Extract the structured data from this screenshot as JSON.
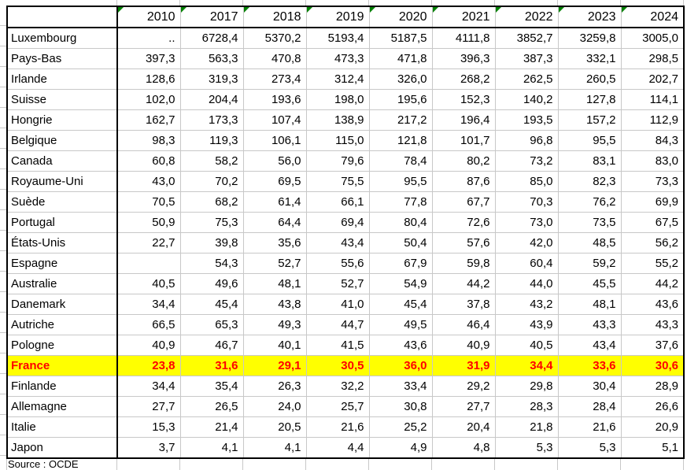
{
  "table": {
    "corner_label": "",
    "columns": [
      "2010",
      "2017",
      "2018",
      "2019",
      "2020",
      "2021",
      "2022",
      "2023",
      "2024"
    ],
    "rows": [
      {
        "label": "Luxembourg",
        "highlight": false,
        "values": [
          "..",
          "6728,4",
          "5370,2",
          "5193,4",
          "5187,5",
          "4111,8",
          "3852,7",
          "3259,8",
          "3005,0"
        ]
      },
      {
        "label": "Pays-Bas",
        "highlight": false,
        "values": [
          "397,3",
          "563,3",
          "470,8",
          "473,3",
          "471,8",
          "396,3",
          "387,3",
          "332,1",
          "298,5"
        ]
      },
      {
        "label": "Irlande",
        "highlight": false,
        "values": [
          "128,6",
          "319,3",
          "273,4",
          "312,4",
          "326,0",
          "268,2",
          "262,5",
          "260,5",
          "202,7"
        ]
      },
      {
        "label": "Suisse",
        "highlight": false,
        "values": [
          "102,0",
          "204,4",
          "193,6",
          "198,0",
          "195,6",
          "152,3",
          "140,2",
          "127,8",
          "114,1"
        ]
      },
      {
        "label": "Hongrie",
        "highlight": false,
        "values": [
          "162,7",
          "173,3",
          "107,4",
          "138,9",
          "217,2",
          "196,4",
          "193,5",
          "157,2",
          "112,9"
        ]
      },
      {
        "label": "Belgique",
        "highlight": false,
        "values": [
          "98,3",
          "119,3",
          "106,1",
          "115,0",
          "121,8",
          "101,7",
          "96,8",
          "95,5",
          "84,3"
        ]
      },
      {
        "label": "Canada",
        "highlight": false,
        "values": [
          "60,8",
          "58,2",
          "56,0",
          "79,6",
          "78,4",
          "80,2",
          "73,2",
          "83,1",
          "83,0"
        ]
      },
      {
        "label": "Royaume-Uni",
        "highlight": false,
        "values": [
          "43,0",
          "70,2",
          "69,5",
          "75,5",
          "95,5",
          "87,6",
          "85,0",
          "82,3",
          "73,3"
        ]
      },
      {
        "label": "Suède",
        "highlight": false,
        "values": [
          "70,5",
          "68,2",
          "61,4",
          "66,1",
          "77,8",
          "67,7",
          "70,3",
          "76,2",
          "69,9"
        ]
      },
      {
        "label": "Portugal",
        "highlight": false,
        "values": [
          "50,9",
          "75,3",
          "64,4",
          "69,4",
          "80,4",
          "72,6",
          "73,0",
          "73,5",
          "67,5"
        ]
      },
      {
        "label": "États-Unis",
        "highlight": false,
        "values": [
          "22,7",
          "39,8",
          "35,6",
          "43,4",
          "50,4",
          "57,6",
          "42,0",
          "48,5",
          "56,2"
        ]
      },
      {
        "label": "Espagne",
        "highlight": false,
        "values": [
          "",
          "54,3",
          "52,7",
          "55,6",
          "67,9",
          "59,8",
          "60,4",
          "59,2",
          "55,2"
        ]
      },
      {
        "label": "Australie",
        "highlight": false,
        "values": [
          "40,5",
          "49,6",
          "48,1",
          "52,7",
          "54,9",
          "44,2",
          "44,0",
          "45,5",
          "44,2"
        ]
      },
      {
        "label": "Danemark",
        "highlight": false,
        "values": [
          "34,4",
          "45,4",
          "43,8",
          "41,0",
          "45,4",
          "37,8",
          "43,2",
          "48,1",
          "43,6"
        ]
      },
      {
        "label": "Autriche",
        "highlight": false,
        "values": [
          "66,5",
          "65,3",
          "49,3",
          "44,7",
          "49,5",
          "46,4",
          "43,9",
          "43,3",
          "43,3"
        ]
      },
      {
        "label": "Pologne",
        "highlight": false,
        "values": [
          "40,9",
          "46,7",
          "40,1",
          "41,5",
          "43,6",
          "40,9",
          "40,5",
          "43,4",
          "37,6"
        ]
      },
      {
        "label": "France",
        "highlight": true,
        "values": [
          "23,8",
          "31,6",
          "29,1",
          "30,5",
          "36,0",
          "31,9",
          "34,4",
          "33,6",
          "30,6"
        ]
      },
      {
        "label": "Finlande",
        "highlight": false,
        "values": [
          "34,4",
          "35,4",
          "26,3",
          "32,2",
          "33,4",
          "29,2",
          "29,8",
          "30,4",
          "28,9"
        ]
      },
      {
        "label": "Allemagne",
        "highlight": false,
        "values": [
          "27,7",
          "26,5",
          "24,0",
          "25,7",
          "30,8",
          "27,7",
          "28,3",
          "28,4",
          "26,6"
        ]
      },
      {
        "label": "Italie",
        "highlight": false,
        "values": [
          "15,3",
          "21,4",
          "20,5",
          "21,6",
          "25,2",
          "20,4",
          "21,8",
          "21,6",
          "20,9"
        ]
      },
      {
        "label": "Japon",
        "highlight": false,
        "values": [
          "3,7",
          "4,1",
          "4,1",
          "4,4",
          "4,9",
          "4,8",
          "5,3",
          "5,3",
          "5,1"
        ]
      }
    ]
  },
  "footer": {
    "source_label": "Source : OCDE"
  },
  "icons": {
    "header_flag": "green-corner-triangle-flag"
  },
  "colors": {
    "highlight_bg": "#FFFF00",
    "highlight_text": "#FF0000",
    "flag_green": "#008000",
    "gridline_gray": "#C8C8C8",
    "border_black": "#000000"
  }
}
